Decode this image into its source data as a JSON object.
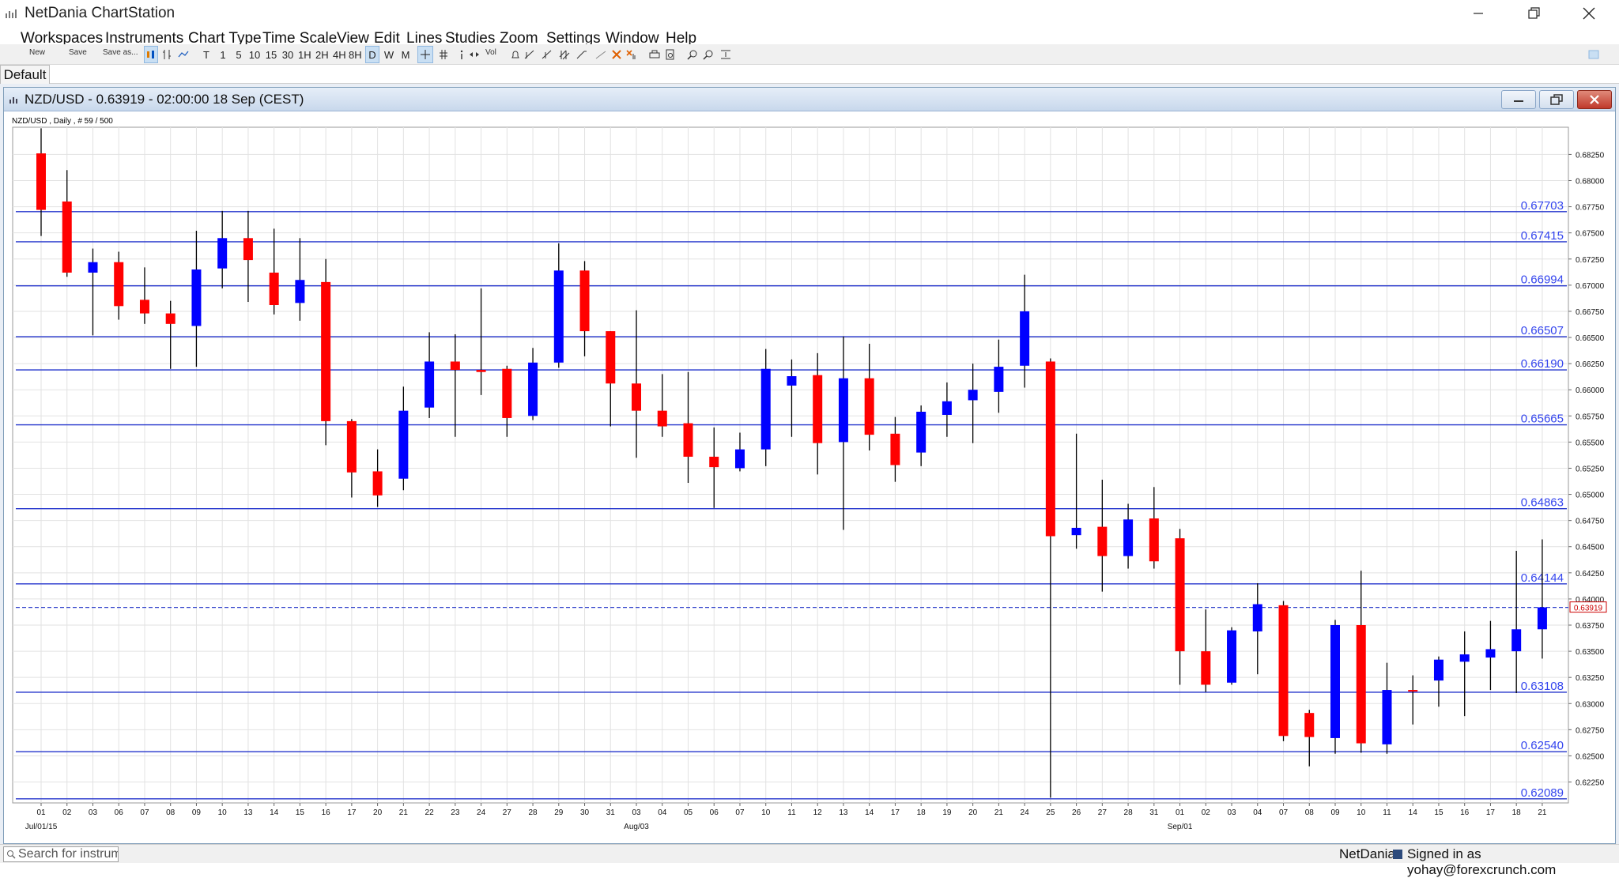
{
  "app": {
    "title": "NetDania ChartStation",
    "menu": [
      "Workspaces",
      "Instruments",
      "Chart Type",
      "Time Scale",
      "View",
      "Edit",
      "Lines",
      "Studies",
      "Zoom",
      "Settings",
      "Window",
      "Help"
    ]
  },
  "toolbar": {
    "new_label": "New",
    "save_label": "Save",
    "saveas_label": "Save as...",
    "timescales": [
      "T",
      "1",
      "5",
      "10",
      "15",
      "30",
      "1H",
      "2H",
      "4H",
      "8H",
      "D",
      "W",
      "M"
    ],
    "active_timescale": "D",
    "vol_label": "Vol"
  },
  "tabs": {
    "default_label": "Default"
  },
  "chart_window": {
    "title": "NZD/USD - 0.63919 - 02:00:00  18 Sep (CEST)",
    "info": "NZD/USD , Daily , # 59 / 500"
  },
  "statusbar": {
    "search_placeholder": "Search for instrument",
    "brand": "NetDania",
    "signed_in": "Signed in as yohay@forexcrunch.com"
  },
  "colors": {
    "bull": "#0000ff",
    "bear": "#ff0000",
    "hline": "#2233cc",
    "last_price_line": "#3344cc",
    "last_price_box": "#cc0000",
    "grid": "#e2e2e2"
  },
  "chart_data": {
    "type": "candlestick",
    "instrument": "NZD/USD",
    "timeframe": "Daily",
    "ylim": [
      0.6205,
      0.6851
    ],
    "y_ticks": [
      "0.68250",
      "0.68000",
      "0.67750",
      "0.67500",
      "0.67250",
      "0.67000",
      "0.66750",
      "0.66500",
      "0.66250",
      "0.66000",
      "0.65750",
      "0.65500",
      "0.65250",
      "0.65000",
      "0.64750",
      "0.64500",
      "0.64250",
      "0.64000",
      "0.63750",
      "0.63500",
      "0.63250",
      "0.63000",
      "0.62750",
      "0.62500",
      "0.62250"
    ],
    "y_tick_values": [
      0.6825,
      0.68,
      0.6775,
      0.675,
      0.6725,
      0.67,
      0.6675,
      0.665,
      0.6625,
      0.66,
      0.6575,
      0.655,
      0.6525,
      0.65,
      0.6475,
      0.645,
      0.6425,
      0.64,
      0.6375,
      0.635,
      0.6325,
      0.63,
      0.6275,
      0.625,
      0.6225
    ],
    "x_labels": [
      "01",
      "02",
      "03",
      "06",
      "07",
      "08",
      "09",
      "10",
      "13",
      "14",
      "15",
      "16",
      "17",
      "20",
      "21",
      "22",
      "23",
      "24",
      "27",
      "28",
      "29",
      "30",
      "31",
      "03",
      "04",
      "05",
      "06",
      "07",
      "10",
      "11",
      "12",
      "13",
      "14",
      "17",
      "18",
      "19",
      "20",
      "21",
      "24",
      "25",
      "26",
      "27",
      "28",
      "31",
      "01",
      "02",
      "03",
      "04",
      "07",
      "08",
      "09",
      "10",
      "11",
      "14",
      "15",
      "16",
      "17",
      "18",
      "21"
    ],
    "month_labels": [
      {
        "label": "Jul/01/15",
        "index": 0
      },
      {
        "label": "Aug/03",
        "index": 23
      },
      {
        "label": "Sep/01",
        "index": 44
      }
    ],
    "candles": [
      {
        "o": 0.6826,
        "h": 0.685,
        "l": 0.6747,
        "c": 0.6772
      },
      {
        "o": 0.678,
        "h": 0.681,
        "l": 0.6708,
        "c": 0.6712
      },
      {
        "o": 0.6712,
        "h": 0.6735,
        "l": 0.6652,
        "c": 0.6722
      },
      {
        "o": 0.6722,
        "h": 0.6732,
        "l": 0.6667,
        "c": 0.668
      },
      {
        "o": 0.6686,
        "h": 0.6717,
        "l": 0.6663,
        "c": 0.6673
      },
      {
        "o": 0.6673,
        "h": 0.6685,
        "l": 0.662,
        "c": 0.6663
      },
      {
        "o": 0.6661,
        "h": 0.6752,
        "l": 0.6622,
        "c": 0.6715
      },
      {
        "o": 0.6716,
        "h": 0.6771,
        "l": 0.6697,
        "c": 0.6745
      },
      {
        "o": 0.6745,
        "h": 0.6771,
        "l": 0.6684,
        "c": 0.6724
      },
      {
        "o": 0.6712,
        "h": 0.6754,
        "l": 0.6672,
        "c": 0.6681
      },
      {
        "o": 0.6683,
        "h": 0.6745,
        "l": 0.6666,
        "c": 0.6705
      },
      {
        "o": 0.6703,
        "h": 0.6725,
        "l": 0.6547,
        "c": 0.657
      },
      {
        "o": 0.657,
        "h": 0.6572,
        "l": 0.6497,
        "c": 0.6521
      },
      {
        "o": 0.6522,
        "h": 0.6543,
        "l": 0.6488,
        "c": 0.6499
      },
      {
        "o": 0.6515,
        "h": 0.6603,
        "l": 0.6504,
        "c": 0.658
      },
      {
        "o": 0.6583,
        "h": 0.6655,
        "l": 0.6573,
        "c": 0.6627
      },
      {
        "o": 0.6627,
        "h": 0.6653,
        "l": 0.6555,
        "c": 0.6619
      },
      {
        "o": 0.6619,
        "h": 0.6697,
        "l": 0.6595,
        "c": 0.6617
      },
      {
        "o": 0.662,
        "h": 0.6623,
        "l": 0.6555,
        "c": 0.6573
      },
      {
        "o": 0.6575,
        "h": 0.664,
        "l": 0.6571,
        "c": 0.6626
      },
      {
        "o": 0.6626,
        "h": 0.674,
        "l": 0.6621,
        "c": 0.6714
      },
      {
        "o": 0.6714,
        "h": 0.6723,
        "l": 0.6632,
        "c": 0.6656
      },
      {
        "o": 0.6656,
        "h": 0.6656,
        "l": 0.6565,
        "c": 0.6606
      },
      {
        "o": 0.6606,
        "h": 0.6676,
        "l": 0.6535,
        "c": 0.658
      },
      {
        "o": 0.658,
        "h": 0.6615,
        "l": 0.6555,
        "c": 0.6565
      },
      {
        "o": 0.6568,
        "h": 0.6617,
        "l": 0.6511,
        "c": 0.6536
      },
      {
        "o": 0.6536,
        "h": 0.6564,
        "l": 0.6487,
        "c": 0.6526
      },
      {
        "o": 0.6525,
        "h": 0.6559,
        "l": 0.6522,
        "c": 0.6543
      },
      {
        "o": 0.6543,
        "h": 0.6639,
        "l": 0.6527,
        "c": 0.662
      },
      {
        "o": 0.6604,
        "h": 0.6629,
        "l": 0.6555,
        "c": 0.6613
      },
      {
        "o": 0.6614,
        "h": 0.6635,
        "l": 0.6519,
        "c": 0.6549
      },
      {
        "o": 0.655,
        "h": 0.6651,
        "l": 0.6466,
        "c": 0.6611
      },
      {
        "o": 0.6611,
        "h": 0.6644,
        "l": 0.6542,
        "c": 0.6557
      },
      {
        "o": 0.6558,
        "h": 0.6574,
        "l": 0.6512,
        "c": 0.6528
      },
      {
        "o": 0.654,
        "h": 0.6585,
        "l": 0.6527,
        "c": 0.6579
      },
      {
        "o": 0.6576,
        "h": 0.6607,
        "l": 0.6555,
        "c": 0.6589
      },
      {
        "o": 0.659,
        "h": 0.6625,
        "l": 0.6549,
        "c": 0.66
      },
      {
        "o": 0.6598,
        "h": 0.6648,
        "l": 0.6578,
        "c": 0.6622
      },
      {
        "o": 0.6623,
        "h": 0.671,
        "l": 0.6602,
        "c": 0.6675
      },
      {
        "o": 0.6627,
        "h": 0.663,
        "l": 0.621,
        "c": 0.646
      },
      {
        "o": 0.6461,
        "h": 0.6558,
        "l": 0.6448,
        "c": 0.6468
      },
      {
        "o": 0.6469,
        "h": 0.6514,
        "l": 0.6407,
        "c": 0.6441
      },
      {
        "o": 0.6441,
        "h": 0.6491,
        "l": 0.6429,
        "c": 0.6476
      },
      {
        "o": 0.6477,
        "h": 0.6507,
        "l": 0.6429,
        "c": 0.6436
      },
      {
        "o": 0.6458,
        "h": 0.6467,
        "l": 0.6318,
        "c": 0.635
      },
      {
        "o": 0.635,
        "h": 0.639,
        "l": 0.6311,
        "c": 0.6318
      },
      {
        "o": 0.632,
        "h": 0.6373,
        "l": 0.6318,
        "c": 0.637
      },
      {
        "o": 0.6369,
        "h": 0.6415,
        "l": 0.6328,
        "c": 0.6395
      },
      {
        "o": 0.6394,
        "h": 0.6398,
        "l": 0.6264,
        "c": 0.6269
      },
      {
        "o": 0.6291,
        "h": 0.6294,
        "l": 0.624,
        "c": 0.6268
      },
      {
        "o": 0.6267,
        "h": 0.638,
        "l": 0.6252,
        "c": 0.6375
      },
      {
        "o": 0.6375,
        "h": 0.6427,
        "l": 0.6253,
        "c": 0.6262
      },
      {
        "o": 0.6261,
        "h": 0.6339,
        "l": 0.6252,
        "c": 0.6313
      },
      {
        "o": 0.6313,
        "h": 0.6327,
        "l": 0.628,
        "c": 0.6312
      },
      {
        "o": 0.6322,
        "h": 0.6345,
        "l": 0.6297,
        "c": 0.6342
      },
      {
        "o": 0.634,
        "h": 0.6369,
        "l": 0.6288,
        "c": 0.6347
      },
      {
        "o": 0.6344,
        "h": 0.6379,
        "l": 0.6313,
        "c": 0.6352
      },
      {
        "o": 0.635,
        "h": 0.6446,
        "l": 0.631,
        "c": 0.6371
      },
      {
        "o": 0.6371,
        "h": 0.6457,
        "l": 0.6343,
        "c": 0.6392
      }
    ],
    "hlines": [
      {
        "value": 0.67703,
        "label": "0.67703"
      },
      {
        "value": 0.67415,
        "label": "0.67415"
      },
      {
        "value": 0.66994,
        "label": "0.66994"
      },
      {
        "value": 0.66507,
        "label": "0.66507"
      },
      {
        "value": 0.6619,
        "label": "0.66190"
      },
      {
        "value": 0.65665,
        "label": "0.65665"
      },
      {
        "value": 0.64863,
        "label": "0.64863"
      },
      {
        "value": 0.64144,
        "label": "0.64144"
      },
      {
        "value": 0.63108,
        "label": "0.63108"
      },
      {
        "value": 0.6254,
        "label": "0.62540"
      },
      {
        "value": 0.62089,
        "label": "0.62089"
      }
    ],
    "last_price": {
      "value": 0.63919,
      "label": "0.63919"
    },
    "grid": true
  }
}
